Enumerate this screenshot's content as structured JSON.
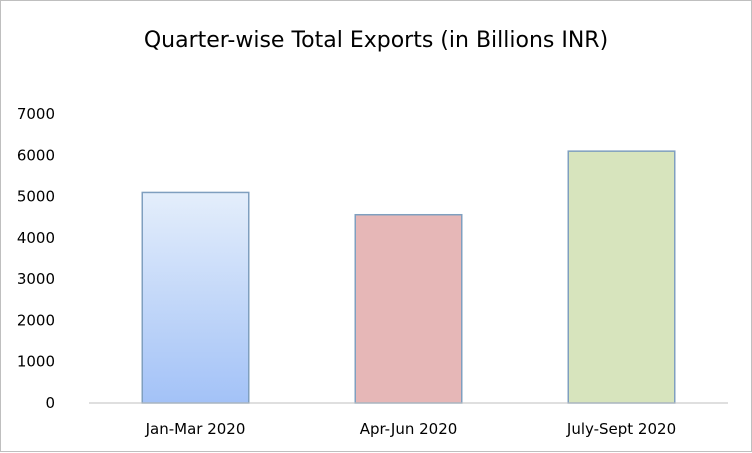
{
  "chart_data": {
    "type": "bar",
    "title": "Quarter-wise  Total  Exports  (in Billions INR)",
    "xlabel": "",
    "ylabel": "",
    "categories": [
      "Jan-Mar 2020",
      "Apr-Jun 2020",
      "July-Sept 2020"
    ],
    "values": [
      5100,
      4560,
      6100
    ],
    "ylim": [
      0,
      7000
    ],
    "yticks": [
      "0",
      "1000",
      "2000",
      "3000",
      "4000",
      "5000",
      "6000",
      "7000"
    ],
    "grid": false,
    "legend": "none",
    "bar_colors": [
      {
        "top": "#e4eefb",
        "bottom": "#a3c2f7"
      },
      {
        "top": "#e6b7b7",
        "bottom": "#e6b7b7"
      },
      {
        "top": "#d7e4bd",
        "bottom": "#d7e4bd"
      }
    ],
    "bar_border": "#7f9fbf",
    "axis_color": "#bfbfbf"
  }
}
